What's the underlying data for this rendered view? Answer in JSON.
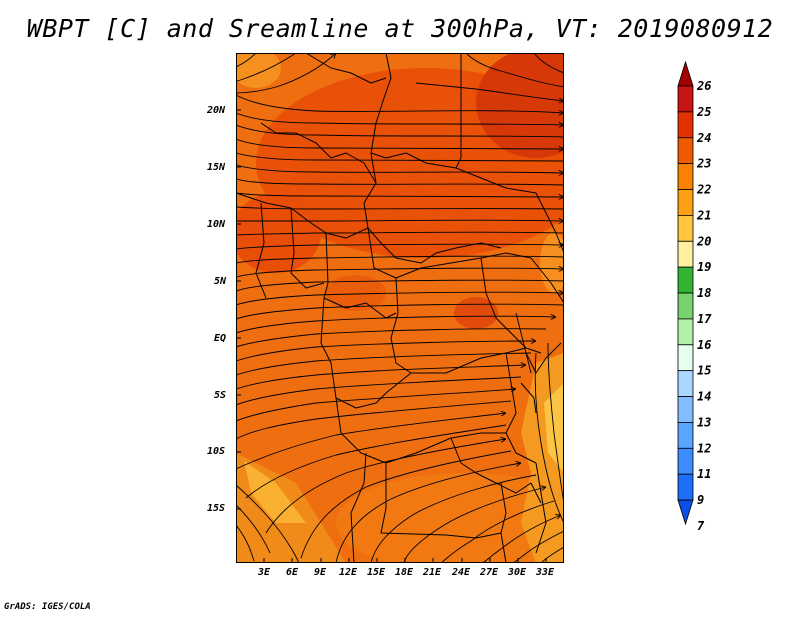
{
  "title": "WBPT [C] and Sreamline at 300hPa, VT: 2019080912",
  "credit": "GrADS: IGES/COLA",
  "map": {
    "lat_labels": [
      "20N",
      "15N",
      "10N",
      "5N",
      "EQ",
      "5S",
      "10S",
      "15S"
    ],
    "lon_labels": [
      "3E",
      "6E",
      "9E",
      "12E",
      "15E",
      "18E",
      "21E",
      "24E",
      "27E",
      "30E",
      "33E"
    ],
    "field": "WBPT",
    "level": "300hPa",
    "valid_time": "2019080912"
  },
  "colorbar": {
    "labels": [
      "26",
      "25",
      "24",
      "23",
      "22",
      "21",
      "20",
      "19",
      "18",
      "17",
      "16",
      "15",
      "14",
      "13",
      "12",
      "11",
      "9",
      "7"
    ],
    "colors": [
      "#a50000",
      "#c81414",
      "#e13200",
      "#f05a00",
      "#fa8200",
      "#ffa014",
      "#ffc83c",
      "#fff0a0",
      "#32b432",
      "#78d26e",
      "#b4f0aa",
      "#e6fff0",
      "#aad7ff",
      "#82beff",
      "#5aa5ff",
      "#3c8cff",
      "#1e6efa",
      "#0a50e6"
    ]
  },
  "colors": {
    "map_base": "#ee6e10",
    "streamline": "#000000",
    "border": "#000000"
  }
}
